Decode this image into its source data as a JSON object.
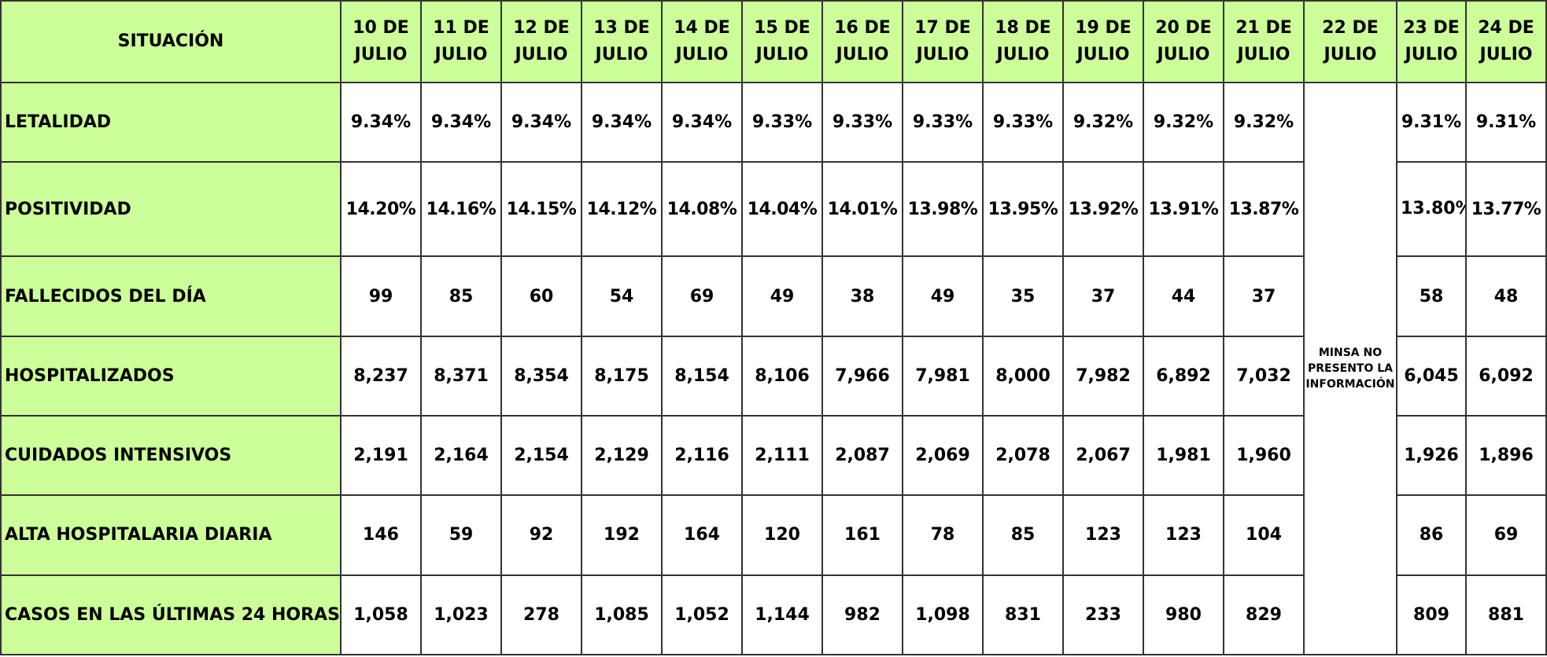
{
  "header": {
    "situation": "SITUACIÓN",
    "dates": [
      "10 DE JULIO",
      "11 DE JULIO",
      "12 DE JULIO",
      "13 DE JULIO",
      "14 DE JULIO",
      "15 DE JULIO",
      "16 DE JULIO",
      "17 DE JULIO",
      "18 DE JULIO",
      "19 DE JULIO",
      "20 DE JULIO",
      "21 DE JULIO",
      "22 DE JULIO",
      "23 DE JULIO",
      "24 DE JULIO"
    ]
  },
  "note": "MINSA NO PRESENTO LA INFORMACIÓN",
  "rows": [
    {
      "label": "LETALIDAD",
      "before": [
        "9.34%",
        "9.34%",
        "9.34%",
        "9.34%",
        "9.34%",
        "9.33%",
        "9.33%",
        "9.33%",
        "9.33%",
        "9.32%",
        "9.32%",
        "9.32%"
      ],
      "after": [
        "9.31%",
        "9.31%"
      ]
    },
    {
      "label": "POSITIVIDAD",
      "before": [
        "14.20%",
        "14.16%",
        "14.15%",
        "14.12%",
        "14.08%",
        "14.04%",
        "14.01%",
        "13.98%",
        "13.95%",
        "13.92%",
        "13.91%",
        "13.87%"
      ],
      "after": [
        "13.80%",
        "13.77%"
      ]
    },
    {
      "label": "FALLECIDOS DEL DÍA",
      "before": [
        "99",
        "85",
        "60",
        "54",
        "69",
        "49",
        "38",
        "49",
        "35",
        "37",
        "44",
        "37"
      ],
      "after": [
        "58",
        "48"
      ]
    },
    {
      "label": "HOSPITALIZADOS",
      "before": [
        "8,237",
        "8,371",
        "8,354",
        "8,175",
        "8,154",
        "8,106",
        "7,966",
        "7,981",
        "8,000",
        "7,982",
        "6,892",
        "7,032"
      ],
      "after": [
        "6,045",
        "6,092"
      ]
    },
    {
      "label": "CUIDADOS INTENSIVOS",
      "before": [
        "2,191",
        "2,164",
        "2,154",
        "2,129",
        "2,116",
        "2,111",
        "2,087",
        "2,069",
        "2,078",
        "2,067",
        "1,981",
        "1,960"
      ],
      "after": [
        "1,926",
        "1,896"
      ]
    },
    {
      "label": "ALTA HOSPITALARIA  DIARIA",
      "before": [
        "146",
        "59",
        "92",
        "192",
        "164",
        "120",
        "161",
        "78",
        "85",
        "123",
        "123",
        "104"
      ],
      "after": [
        "86",
        "69"
      ]
    },
    {
      "label": "CASOS EN LAS ÚLTIMAS 24 HORAS",
      "before": [
        "1,058",
        "1,023",
        "278",
        "1,085",
        "1,052",
        "1,144",
        "982",
        "1,098",
        "831",
        "233",
        "980",
        "829"
      ],
      "after": [
        "809",
        "881"
      ]
    }
  ]
}
